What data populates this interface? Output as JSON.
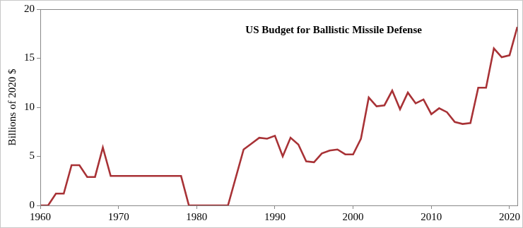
{
  "chart_data": {
    "type": "line",
    "title": "US Budget for Ballistic Missile Defense",
    "y_label": "Billions of 2020 $",
    "x": [
      1960,
      1961,
      1962,
      1963,
      1964,
      1965,
      1966,
      1967,
      1968,
      1969,
      1970,
      1971,
      1972,
      1973,
      1974,
      1975,
      1976,
      1977,
      1978,
      1979,
      1980,
      1981,
      1982,
      1983,
      1984,
      1986,
      1987,
      1988,
      1989,
      1990,
      1991,
      1992,
      1993,
      1994,
      1995,
      1996,
      1997,
      1998,
      1999,
      2000,
      2001,
      2002,
      2003,
      2004,
      2005,
      2006,
      2007,
      2008,
      2009,
      2010,
      2011,
      2012,
      2013,
      2014,
      2015,
      2016,
      2017,
      2018,
      2019,
      2020,
      2021
    ],
    "values": [
      0,
      0,
      1.2,
      1.2,
      4.1,
      4.1,
      2.9,
      2.9,
      5.9,
      3.0,
      3.0,
      3.0,
      3.0,
      3.0,
      3.0,
      3.0,
      3.0,
      3.0,
      3.0,
      0,
      0,
      0,
      0,
      0,
      0,
      5.7,
      6.3,
      6.9,
      6.8,
      7.1,
      5.0,
      6.9,
      6.2,
      4.5,
      4.4,
      5.3,
      5.6,
      5.7,
      5.2,
      5.2,
      6.8,
      11.0,
      10.1,
      10.2,
      11.7,
      9.8,
      11.5,
      10.4,
      10.8,
      9.3,
      9.9,
      9.5,
      8.5,
      8.3,
      8.4,
      12.0,
      12.0,
      16.0,
      15.1,
      15.3,
      18.2
    ],
    "color": "#a83236",
    "xlim": [
      1960,
      2021
    ],
    "xticks": [
      1960,
      1970,
      1980,
      1990,
      2000,
      2010,
      2020
    ],
    "ylim": [
      0,
      20
    ],
    "yticks": [
      0,
      5,
      10,
      15,
      20
    ],
    "grid": false
  }
}
